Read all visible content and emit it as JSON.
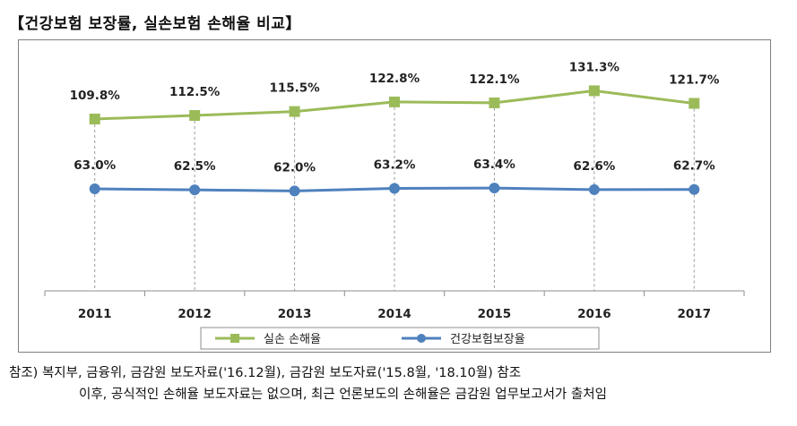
{
  "title": "【건강보험 보장률, 실손보험 손해율 비교】",
  "chart_data": {
    "type": "line",
    "categories": [
      "2011",
      "2012",
      "2013",
      "2014",
      "2015",
      "2016",
      "2017"
    ],
    "series": [
      {
        "name": "실손 손해율",
        "values": [
          109.8,
          112.5,
          115.5,
          122.8,
          122.1,
          131.3,
          121.7
        ],
        "labels": [
          "109.8%",
          "112.5%",
          "115.5%",
          "122.8%",
          "122.1%",
          "131.3%",
          "121.7%"
        ],
        "color": "#9bbb59",
        "marker": "square"
      },
      {
        "name": "건강보험보장율",
        "values": [
          63.0,
          62.5,
          62.0,
          63.2,
          63.4,
          62.6,
          62.7
        ],
        "labels": [
          "63.0%",
          "62.5%",
          "62.0%",
          "63.2%",
          "63.4%",
          "62.6%",
          "62.7%"
        ],
        "color": "#4f81bd",
        "marker": "circle"
      }
    ],
    "ylim": [
      0,
      140
    ],
    "legend": "bottom",
    "grid": false
  },
  "note": {
    "line1": "참조) 복지부, 금융위, 금감원 보도자료('16.12월), 금감원 보도자료('15.8월, '18.10월) 참조",
    "line2": "이후, 공식적인 손해율 보도자료는 없으며, 최근 언론보도의 손해율은 금감원 업무보고서가 출처임"
  }
}
